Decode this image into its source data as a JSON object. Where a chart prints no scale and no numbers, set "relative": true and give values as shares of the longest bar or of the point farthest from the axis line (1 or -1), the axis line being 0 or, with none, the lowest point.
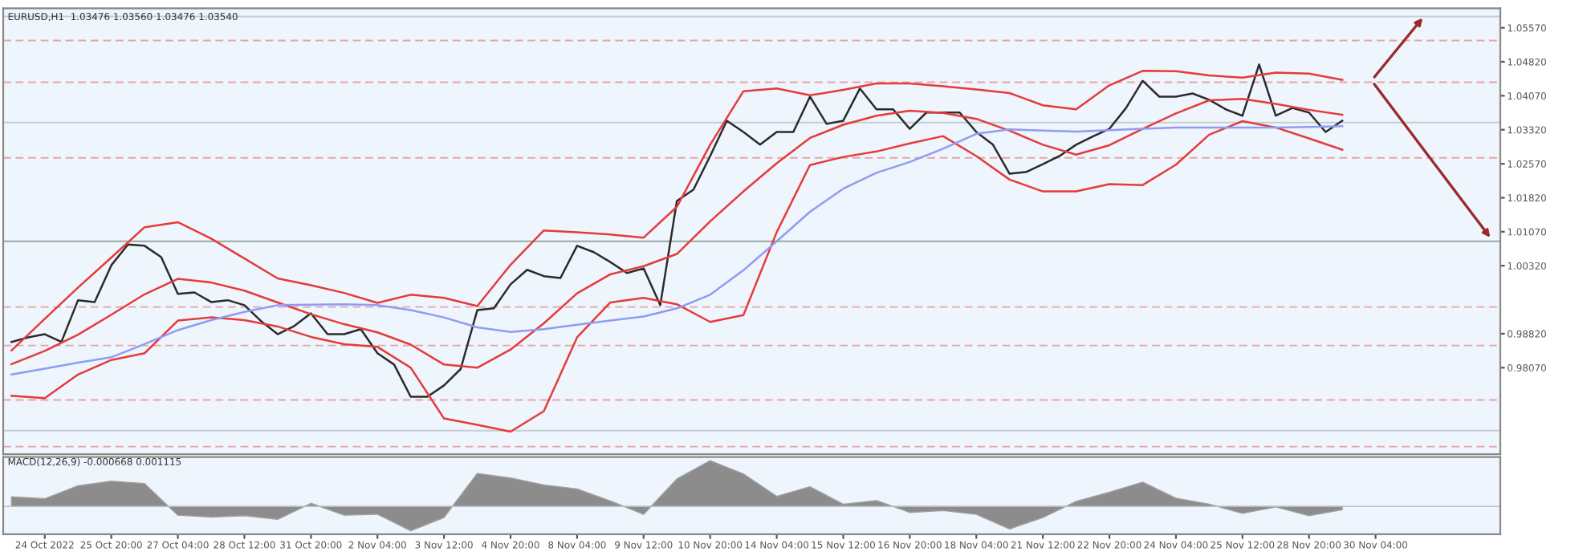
{
  "chart_data": [
    {
      "type": "line",
      "title": "EURUSD,H1  1.03476 1.03560 1.03476 1.03540",
      "ylim": [
        0.9616,
        1.06
      ],
      "categories": [
        null,
        null,
        null,
        null,
        null,
        null,
        null,
        null,
        null,
        null,
        null,
        null,
        null,
        null,
        null,
        null,
        null,
        null,
        null,
        null,
        null,
        null,
        null,
        null,
        null,
        null,
        null,
        null,
        null,
        null,
        null,
        null,
        null,
        null,
        null,
        null,
        null,
        null,
        null,
        null,
        null,
        null,
        null,
        null,
        null,
        null,
        null,
        null,
        null,
        null,
        null,
        null,
        null,
        null,
        null,
        null,
        null,
        null,
        null,
        null,
        null,
        null,
        null,
        null,
        null,
        null,
        null,
        null,
        null,
        null,
        null,
        null,
        null,
        null,
        null,
        null,
        null,
        null,
        null,
        null,
        null,
        null,
        null,
        null,
        null,
        null,
        null,
        null,
        null,
        null
      ],
      "yticks": [
        {
          "value": 1.0557,
          "label": "1.05570"
        },
        {
          "value": 1.0482,
          "label": "1.04820"
        },
        {
          "value": 1.0407,
          "label": "1.04070"
        },
        {
          "value": 1.0332,
          "label": "1.03320"
        },
        {
          "value": 1.0257,
          "label": "1.02570"
        },
        {
          "value": 1.0182,
          "label": "1.01820"
        },
        {
          "value": 1.0107,
          "label": "1.01070"
        },
        {
          "value": 1.0032,
          "label": "1.00320"
        },
        {
          "value": 0.9882,
          "label": "0.98820"
        },
        {
          "value": 0.9807,
          "label": "0.98070"
        }
      ],
      "tick_labels": "y",
      "grid": false,
      "legend": false,
      "marker": "none",
      "line_style": "solid",
      "series": [
        {
          "color": "#2b2b2b",
          "values": [
            0.9864,
            0.9874,
            0.9881,
            0.9864,
            0.9956,
            0.9952,
            1.0033,
            1.0079,
            1.0076,
            1.0051,
            0.997,
            0.9973,
            0.9952,
            0.9956,
            0.9945,
            0.991,
            0.9881,
            0.9899,
            0.9927,
            0.9881,
            0.9881,
            0.9892,
            0.9839,
            0.9814,
            0.9743,
            0.9743,
            0.9768,
            0.9804,
            0.9934,
            0.9938,
            0.9991,
            1.0023,
            1.0009,
            1.0005,
            1.0076,
            1.0062,
            1.004,
            1.0016,
            1.0026,
            0.9945,
            1.0175,
            1.02,
            1.0274,
            1.0352,
            1.0327,
            1.0299,
            1.0327,
            1.0327,
            1.0405,
            1.0345,
            1.0352,
            1.0423,
            1.0377,
            1.0377,
            1.0334,
            1.037,
            1.037,
            1.037,
            1.0327,
            1.0299,
            1.0235,
            1.0239,
            1.0256,
            1.0274,
            1.0299,
            1.0317,
            1.0334,
            1.038,
            1.044,
            1.0405,
            1.0405,
            1.0412,
            1.0398,
            1.0377,
            1.0363,
            1.0476,
            1.0363,
            1.038,
            1.037,
            1.0327,
            1.0352,
            null,
            null,
            null,
            null,
            null,
            null,
            null,
            null,
            null
          ]
        },
        {
          "color": "#e53b3b",
          "values": [
            0.9845,
            null,
            0.9915,
            null,
            0.9984,
            null,
            1.005,
            null,
            1.0117,
            null,
            1.0128,
            null,
            1.0092,
            null,
            1.0048,
            null,
            1.0004,
            null,
            0.9989,
            null,
            0.9972,
            null,
            0.995,
            null,
            0.9968,
            null,
            0.9961,
            null,
            0.9943,
            null,
            1.0034,
            null,
            1.011,
            null,
            1.0106,
            null,
            1.0101,
            null,
            1.0094,
            null,
            1.0162,
            null,
            1.0299,
            null,
            1.0417,
            null,
            1.0423,
            null,
            1.0408,
            null,
            1.042,
            null,
            1.0434,
            null,
            1.0434,
            null,
            1.0428,
            null,
            1.0421,
            null,
            1.0413,
            null,
            1.0386,
            null,
            1.0377,
            null,
            1.043,
            null,
            1.0462,
            null,
            1.0461,
            null,
            1.0452,
            null,
            1.0447,
            null,
            1.0458,
            null,
            1.0456,
            null,
            1.0442,
            null,
            null,
            null,
            null,
            null,
            null,
            null,
            null,
            null
          ]
        },
        {
          "color": "#e53b3b",
          "values": [
            0.9815,
            null,
            0.9844,
            null,
            0.988,
            null,
            0.9924,
            null,
            0.9969,
            null,
            1.0003,
            null,
            0.9995,
            null,
            0.9977,
            null,
            0.9951,
            null,
            0.9925,
            null,
            0.9903,
            null,
            0.9885,
            null,
            0.9858,
            null,
            0.9814,
            null,
            0.9807,
            null,
            0.9847,
            null,
            0.9905,
            null,
            0.9971,
            null,
            1.0013,
            null,
            1.0031,
            null,
            1.0058,
            null,
            1.013,
            null,
            1.0196,
            null,
            1.0258,
            null,
            1.0314,
            null,
            1.0343,
            null,
            1.0363,
            null,
            1.0374,
            null,
            1.0369,
            null,
            1.0356,
            null,
            1.033,
            null,
            1.0299,
            null,
            1.0277,
            null,
            1.0298,
            null,
            1.0334,
            null,
            1.0368,
            null,
            1.0397,
            null,
            1.04,
            null,
            1.0389,
            null,
            1.0376,
            null,
            1.0365,
            null,
            null,
            null,
            null,
            null,
            null,
            null,
            null,
            null
          ]
        },
        {
          "color": "#e53b3b",
          "values": [
            0.9745,
            null,
            0.974,
            null,
            0.9792,
            null,
            0.9824,
            null,
            0.9839,
            null,
            0.9911,
            null,
            0.9918,
            null,
            0.9912,
            null,
            0.9898,
            null,
            0.9875,
            null,
            0.9859,
            null,
            0.9853,
            null,
            0.9807,
            null,
            0.9695,
            null,
            0.9681,
            null,
            0.9666,
            null,
            0.9711,
            null,
            0.9874,
            null,
            0.9951,
            null,
            0.9961,
            null,
            0.9947,
            null,
            0.9908,
            null,
            0.9923,
            null,
            1.0106,
            null,
            1.0254,
            null,
            1.0272,
            null,
            1.0284,
            null,
            1.0302,
            null,
            1.0318,
            null,
            1.0274,
            null,
            1.0222,
            null,
            1.0196,
            null,
            1.0196,
            null,
            1.0212,
            null,
            1.021,
            null,
            1.0255,
            null,
            1.0321,
            null,
            1.0351,
            null,
            1.0337,
            null,
            1.0313,
            null,
            1.0288,
            null,
            null,
            null,
            null,
            null,
            null,
            null,
            null,
            null
          ]
        },
        {
          "color": "#8f9cf2",
          "values": [
            0.9792,
            null,
            0.9805,
            null,
            0.9818,
            null,
            0.983,
            null,
            0.9859,
            null,
            0.989,
            null,
            0.9912,
            null,
            0.993,
            null,
            0.9945,
            null,
            0.9946,
            null,
            0.9947,
            null,
            0.9945,
            null,
            0.9934,
            null,
            0.9918,
            null,
            0.9896,
            null,
            0.9886,
            null,
            0.9892,
            null,
            0.9902,
            null,
            0.9911,
            null,
            0.992,
            null,
            0.9938,
            null,
            0.9968,
            null,
            1.0022,
            null,
            1.0086,
            null,
            1.0151,
            null,
            1.0202,
            null,
            1.0237,
            null,
            1.0261,
            null,
            1.029,
            null,
            1.0323,
            null,
            1.0333,
            null,
            1.033,
            null,
            1.0328,
            null,
            1.0331,
            null,
            1.0334,
            null,
            1.0337,
            null,
            1.0337,
            null,
            1.0337,
            null,
            1.0337,
            null,
            1.0338,
            null,
            1.034,
            null,
            null,
            null,
            null,
            null,
            null,
            null,
            null,
            null
          ]
        }
      ],
      "ref_lines": [
        {
          "axis": "y",
          "value": 1.0582,
          "color": "#c5cdd6",
          "line_style": "solid"
        },
        {
          "axis": "y",
          "value": 1.0529,
          "color": "#e8a4a4",
          "line_style": "dashed"
        },
        {
          "axis": "y",
          "value": 1.0437,
          "color": "#e8a4a4",
          "line_style": "dashed"
        },
        {
          "axis": "y",
          "value": 1.0348,
          "color": "#c5cdd6",
          "line_style": "solid"
        },
        {
          "axis": "y",
          "value": 1.027,
          "color": "#e8a4a4",
          "line_style": "dashed"
        },
        {
          "axis": "y",
          "value": 1.0086,
          "color": "#9aa7a0",
          "line_style": "solid"
        },
        {
          "axis": "y",
          "value": 0.9941,
          "color": "#e8a4a4",
          "line_style": "dashed"
        },
        {
          "axis": "y",
          "value": 0.9856,
          "color": "#e8a4a4",
          "line_style": "dashed"
        },
        {
          "axis": "y",
          "value": 0.9736,
          "color": "#e8a4a4",
          "line_style": "dashed"
        },
        {
          "axis": "y",
          "value": 0.9668,
          "color": "#c5cdd6",
          "line_style": "solid"
        },
        {
          "axis": "y",
          "value": 0.9633,
          "color": "#e8a4a4",
          "line_style": "dashed"
        }
      ]
    },
    {
      "type": "area",
      "title": "MACD(12,26,9) -0.000668 0.001115",
      "relative": true,
      "categories": [
        null,
        null,
        "24 Oct 2022",
        null,
        null,
        null,
        "25 Oct 20:00",
        null,
        null,
        null,
        "27 Oct 04:00",
        null,
        null,
        null,
        "28 Oct 12:00",
        null,
        null,
        null,
        "31 Oct 20:00",
        null,
        null,
        null,
        "2 Nov 04:00",
        null,
        null,
        null,
        "3 Nov 12:00",
        null,
        null,
        null,
        "4 Nov 20:00",
        null,
        null,
        null,
        "8 Nov 04:00",
        null,
        null,
        null,
        "9 Nov 12:00",
        null,
        null,
        null,
        "10 Nov 20:00",
        null,
        null,
        null,
        "14 Nov 04:00",
        null,
        null,
        null,
        "15 Nov 12:00",
        null,
        null,
        null,
        "16 Nov 20:00",
        null,
        null,
        null,
        "18 Nov 04:00",
        null,
        null,
        null,
        "21 Nov 12:00",
        null,
        null,
        null,
        "22 Nov 20:00",
        null,
        null,
        null,
        "24 Nov 04:00",
        null,
        null,
        null,
        "25 Nov 12:00",
        null,
        null,
        null,
        "28 Nov 20:00",
        null,
        null,
        null,
        "30 Nov 04:00",
        null,
        null,
        null,
        null,
        null,
        null,
        null
      ],
      "tick_labels": "x",
      "grid": false,
      "legend": false,
      "series": [
        {
          "color": "#8c8c8c",
          "values": [
            0.21,
            null,
            0.17,
            null,
            0.45,
            null,
            0.55,
            null,
            0.5,
            null,
            -0.19,
            null,
            -0.23,
            null,
            -0.2,
            null,
            -0.28,
            null,
            0.07,
            null,
            -0.19,
            null,
            -0.17,
            null,
            -0.53,
            null,
            -0.24,
            null,
            0.72,
            null,
            0.62,
            null,
            0.47,
            null,
            0.38,
            null,
            0.12,
            null,
            -0.17,
            null,
            0.6,
            null,
            1,
            null,
            0.71,
            null,
            0.22,
            null,
            0.43,
            null,
            0.05,
            null,
            0.13,
            null,
            -0.13,
            null,
            -0.09,
            null,
            -0.17,
            null,
            -0.49,
            null,
            -0.24,
            null,
            0.11,
            null,
            0.31,
            null,
            0.53,
            null,
            0.18,
            null,
            0.05,
            null,
            -0.15,
            null,
            -0.01,
            null,
            -0.2,
            null,
            -0.07,
            null,
            null,
            null,
            null,
            null,
            null,
            null,
            null,
            null
          ]
        }
      ]
    }
  ]
}
